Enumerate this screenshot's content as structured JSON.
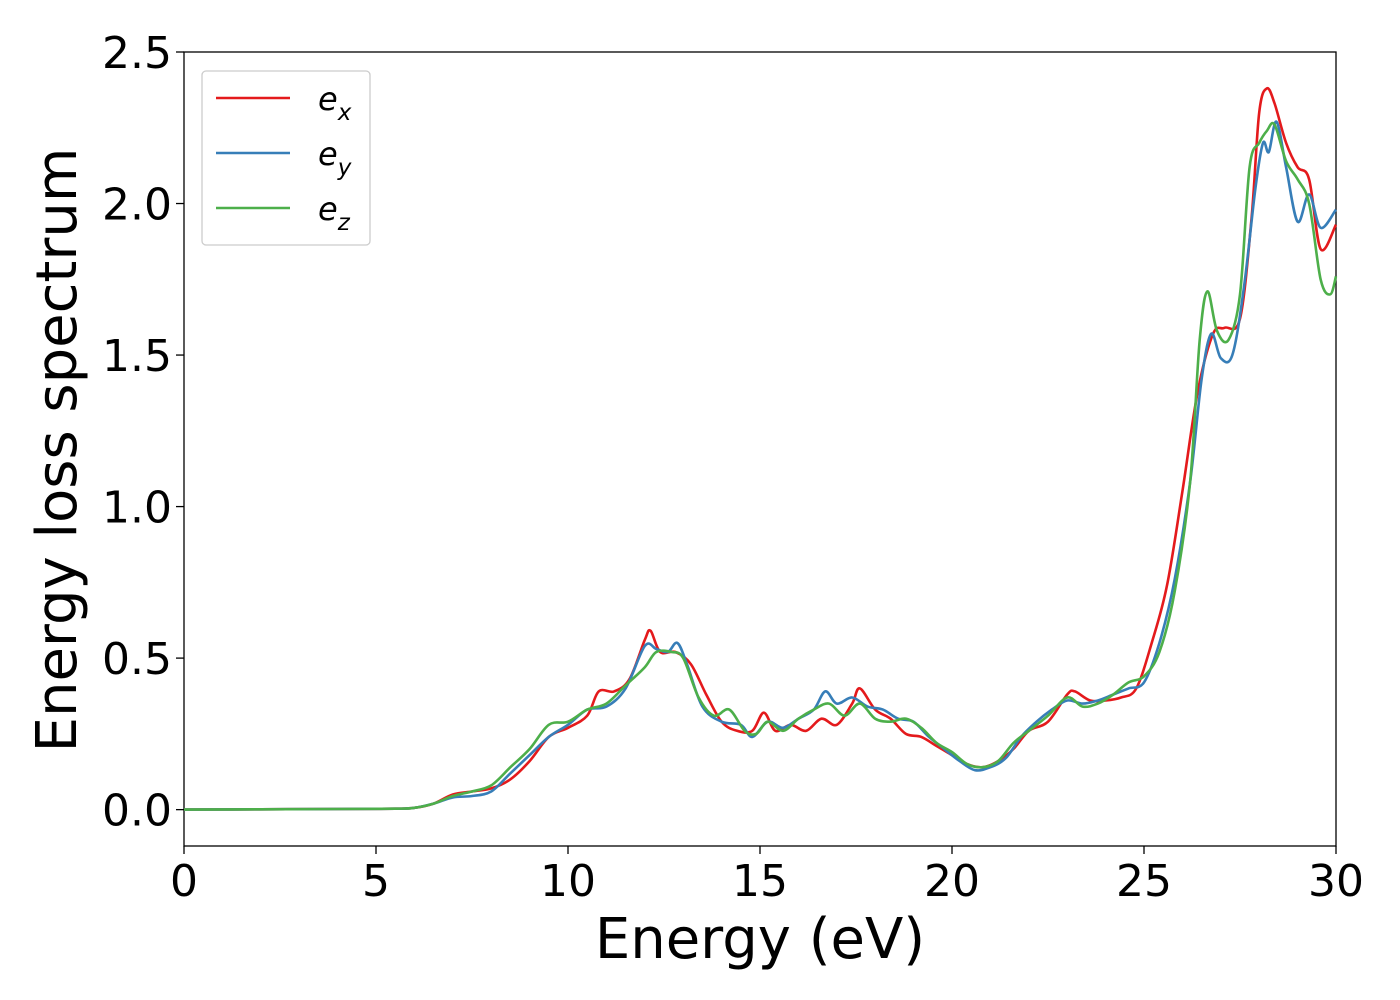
{
  "chart_data": {
    "type": "line",
    "xlabel": "Energy (eV)",
    "ylabel": "Energy loss spectrum",
    "xlim": [
      0,
      30
    ],
    "ylim": [
      -0.12,
      2.5
    ],
    "xticks": [
      0,
      5,
      10,
      15,
      20,
      25,
      30
    ],
    "xtick_labels": [
      "0",
      "5",
      "10",
      "15",
      "20",
      "25",
      "30"
    ],
    "yticks": [
      0.0,
      0.5,
      1.0,
      1.5,
      2.0,
      2.5
    ],
    "ytick_labels": [
      "0.0",
      "0.5",
      "1.0",
      "1.5",
      "2.0",
      "2.5"
    ],
    "grid": false,
    "legend_position": "top-left",
    "series": [
      {
        "name": "e",
        "subscript": "x",
        "color": "#e41a1c",
        "points": [
          [
            0,
            0.0
          ],
          [
            2,
            0.001
          ],
          [
            4,
            0.002
          ],
          [
            5.5,
            0.003
          ],
          [
            6.0,
            0.006
          ],
          [
            6.5,
            0.02
          ],
          [
            7.0,
            0.05
          ],
          [
            7.5,
            0.06
          ],
          [
            8.0,
            0.07
          ],
          [
            8.5,
            0.1
          ],
          [
            9.0,
            0.16
          ],
          [
            9.5,
            0.24
          ],
          [
            10.0,
            0.27
          ],
          [
            10.5,
            0.31
          ],
          [
            10.8,
            0.39
          ],
          [
            11.2,
            0.39
          ],
          [
            11.6,
            0.43
          ],
          [
            12.0,
            0.56
          ],
          [
            12.15,
            0.59
          ],
          [
            12.4,
            0.52
          ],
          [
            12.8,
            0.52
          ],
          [
            13.2,
            0.48
          ],
          [
            13.6,
            0.38
          ],
          [
            14.0,
            0.29
          ],
          [
            14.4,
            0.26
          ],
          [
            14.8,
            0.26
          ],
          [
            15.1,
            0.32
          ],
          [
            15.4,
            0.26
          ],
          [
            15.8,
            0.28
          ],
          [
            16.2,
            0.26
          ],
          [
            16.6,
            0.3
          ],
          [
            17.0,
            0.28
          ],
          [
            17.4,
            0.35
          ],
          [
            17.6,
            0.4
          ],
          [
            18.0,
            0.33
          ],
          [
            18.4,
            0.3
          ],
          [
            18.8,
            0.25
          ],
          [
            19.2,
            0.24
          ],
          [
            19.6,
            0.21
          ],
          [
            20.0,
            0.18
          ],
          [
            20.4,
            0.15
          ],
          [
            20.8,
            0.14
          ],
          [
            21.2,
            0.16
          ],
          [
            21.6,
            0.2
          ],
          [
            22.0,
            0.26
          ],
          [
            22.5,
            0.29
          ],
          [
            23.0,
            0.38
          ],
          [
            23.2,
            0.39
          ],
          [
            23.6,
            0.36
          ],
          [
            24.0,
            0.36
          ],
          [
            24.4,
            0.37
          ],
          [
            24.8,
            0.4
          ],
          [
            25.2,
            0.55
          ],
          [
            25.6,
            0.74
          ],
          [
            26.0,
            1.05
          ],
          [
            26.4,
            1.38
          ],
          [
            26.8,
            1.57
          ],
          [
            27.1,
            1.59
          ],
          [
            27.5,
            1.62
          ],
          [
            27.8,
            1.95
          ],
          [
            28.0,
            2.3
          ],
          [
            28.2,
            2.38
          ],
          [
            28.4,
            2.33
          ],
          [
            28.7,
            2.2
          ],
          [
            29.0,
            2.12
          ],
          [
            29.3,
            2.08
          ],
          [
            29.6,
            1.85
          ],
          [
            30.0,
            1.93
          ]
        ]
      },
      {
        "name": "e",
        "subscript": "y",
        "color": "#377eb8",
        "points": [
          [
            0,
            0.0
          ],
          [
            2,
            0.001
          ],
          [
            4,
            0.002
          ],
          [
            5.5,
            0.003
          ],
          [
            6.0,
            0.006
          ],
          [
            6.5,
            0.02
          ],
          [
            7.0,
            0.04
          ],
          [
            7.5,
            0.045
          ],
          [
            8.0,
            0.06
          ],
          [
            8.5,
            0.12
          ],
          [
            9.0,
            0.18
          ],
          [
            9.5,
            0.24
          ],
          [
            10.0,
            0.28
          ],
          [
            10.5,
            0.33
          ],
          [
            11.0,
            0.34
          ],
          [
            11.5,
            0.4
          ],
          [
            12.0,
            0.54
          ],
          [
            12.3,
            0.53
          ],
          [
            12.6,
            0.52
          ],
          [
            12.85,
            0.55
          ],
          [
            13.1,
            0.48
          ],
          [
            13.5,
            0.34
          ],
          [
            14.0,
            0.29
          ],
          [
            14.5,
            0.28
          ],
          [
            14.8,
            0.24
          ],
          [
            15.2,
            0.29
          ],
          [
            15.6,
            0.27
          ],
          [
            16.0,
            0.3
          ],
          [
            16.4,
            0.33
          ],
          [
            16.7,
            0.39
          ],
          [
            17.0,
            0.35
          ],
          [
            17.4,
            0.37
          ],
          [
            17.8,
            0.34
          ],
          [
            18.2,
            0.33
          ],
          [
            18.6,
            0.3
          ],
          [
            19.0,
            0.29
          ],
          [
            19.4,
            0.24
          ],
          [
            19.8,
            0.2
          ],
          [
            20.2,
            0.16
          ],
          [
            20.6,
            0.13
          ],
          [
            21.0,
            0.14
          ],
          [
            21.4,
            0.17
          ],
          [
            21.8,
            0.24
          ],
          [
            22.2,
            0.29
          ],
          [
            22.6,
            0.33
          ],
          [
            23.0,
            0.36
          ],
          [
            23.4,
            0.35
          ],
          [
            23.8,
            0.36
          ],
          [
            24.2,
            0.38
          ],
          [
            24.6,
            0.4
          ],
          [
            25.0,
            0.42
          ],
          [
            25.4,
            0.55
          ],
          [
            25.8,
            0.76
          ],
          [
            26.2,
            1.08
          ],
          [
            26.5,
            1.42
          ],
          [
            26.75,
            1.57
          ],
          [
            27.0,
            1.49
          ],
          [
            27.3,
            1.5
          ],
          [
            27.6,
            1.72
          ],
          [
            27.9,
            2.05
          ],
          [
            28.1,
            2.2
          ],
          [
            28.25,
            2.17
          ],
          [
            28.45,
            2.27
          ],
          [
            28.7,
            2.12
          ],
          [
            29.0,
            1.94
          ],
          [
            29.3,
            2.03
          ],
          [
            29.6,
            1.92
          ],
          [
            30.0,
            1.98
          ]
        ]
      },
      {
        "name": "e",
        "subscript": "z",
        "color": "#4daf4a",
        "points": [
          [
            0,
            0.0
          ],
          [
            2,
            0.001
          ],
          [
            4,
            0.002
          ],
          [
            5.5,
            0.003
          ],
          [
            6.0,
            0.006
          ],
          [
            6.5,
            0.02
          ],
          [
            7.0,
            0.045
          ],
          [
            7.5,
            0.06
          ],
          [
            8.0,
            0.08
          ],
          [
            8.5,
            0.14
          ],
          [
            9.0,
            0.2
          ],
          [
            9.5,
            0.28
          ],
          [
            10.0,
            0.29
          ],
          [
            10.5,
            0.33
          ],
          [
            11.0,
            0.35
          ],
          [
            11.5,
            0.41
          ],
          [
            12.0,
            0.47
          ],
          [
            12.3,
            0.52
          ],
          [
            12.7,
            0.52
          ],
          [
            13.0,
            0.5
          ],
          [
            13.4,
            0.37
          ],
          [
            13.8,
            0.31
          ],
          [
            14.2,
            0.33
          ],
          [
            14.6,
            0.26
          ],
          [
            14.9,
            0.25
          ],
          [
            15.2,
            0.29
          ],
          [
            15.6,
            0.26
          ],
          [
            16.0,
            0.3
          ],
          [
            16.4,
            0.33
          ],
          [
            16.8,
            0.35
          ],
          [
            17.2,
            0.31
          ],
          [
            17.6,
            0.35
          ],
          [
            18.0,
            0.3
          ],
          [
            18.4,
            0.29
          ],
          [
            18.8,
            0.3
          ],
          [
            19.2,
            0.27
          ],
          [
            19.6,
            0.22
          ],
          [
            20.0,
            0.19
          ],
          [
            20.4,
            0.15
          ],
          [
            20.8,
            0.14
          ],
          [
            21.2,
            0.16
          ],
          [
            21.6,
            0.22
          ],
          [
            22.0,
            0.26
          ],
          [
            22.5,
            0.31
          ],
          [
            23.0,
            0.37
          ],
          [
            23.4,
            0.34
          ],
          [
            23.8,
            0.35
          ],
          [
            24.2,
            0.38
          ],
          [
            24.6,
            0.42
          ],
          [
            25.0,
            0.44
          ],
          [
            25.4,
            0.52
          ],
          [
            25.8,
            0.72
          ],
          [
            26.2,
            1.08
          ],
          [
            26.45,
            1.55
          ],
          [
            26.65,
            1.71
          ],
          [
            26.9,
            1.58
          ],
          [
            27.2,
            1.55
          ],
          [
            27.5,
            1.7
          ],
          [
            27.75,
            2.12
          ],
          [
            28.0,
            2.2
          ],
          [
            28.2,
            2.24
          ],
          [
            28.4,
            2.26
          ],
          [
            28.7,
            2.14
          ],
          [
            29.0,
            2.08
          ],
          [
            29.3,
            2.0
          ],
          [
            29.6,
            1.75
          ],
          [
            29.85,
            1.7
          ],
          [
            30.0,
            1.76
          ]
        ]
      }
    ]
  }
}
